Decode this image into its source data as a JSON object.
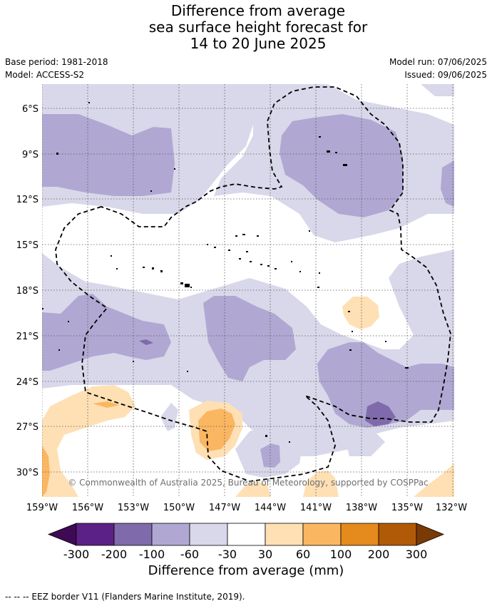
{
  "title": {
    "line1": "Difference from average",
    "line2": "sea surface height forecast for",
    "line3": "14 to 20 June 2025"
  },
  "meta": {
    "base_period": "Base period: 1981-2018",
    "model": "Model: ACCESS-S2",
    "model_run": "Model run: 07/06/2025",
    "issued": "Issued: 09/06/2025"
  },
  "map": {
    "lat_labels": [
      "6°S",
      "9°S",
      "12°S",
      "15°S",
      "18°S",
      "21°S",
      "24°S",
      "27°S",
      "30°S"
    ],
    "lon_labels": [
      "159°W",
      "156°W",
      "153°W",
      "150°W",
      "147°W",
      "144°W",
      "141°W",
      "138°W",
      "135°W",
      "132°W"
    ],
    "copyright": "© Commonwealth of Australia 2025, Bureau of Meteorology, supported by COSPPac"
  },
  "colorbar": {
    "ticks": [
      "-300",
      "-200",
      "-100",
      "-60",
      "-30",
      "30",
      "60",
      "100",
      "200",
      "300"
    ],
    "colors": [
      "#3f0a55",
      "#5c2186",
      "#7f6bab",
      "#b0a8d2",
      "#d8d8ea",
      "#ffffff",
      "#fee0b4",
      "#fbb661",
      "#e58a1c",
      "#b05a08",
      "#7a3a06"
    ],
    "label": "Difference from average (mm)"
  },
  "footer": "--  --  -- EEZ border V11 (Flanders Marine Institute, 2019)."
}
